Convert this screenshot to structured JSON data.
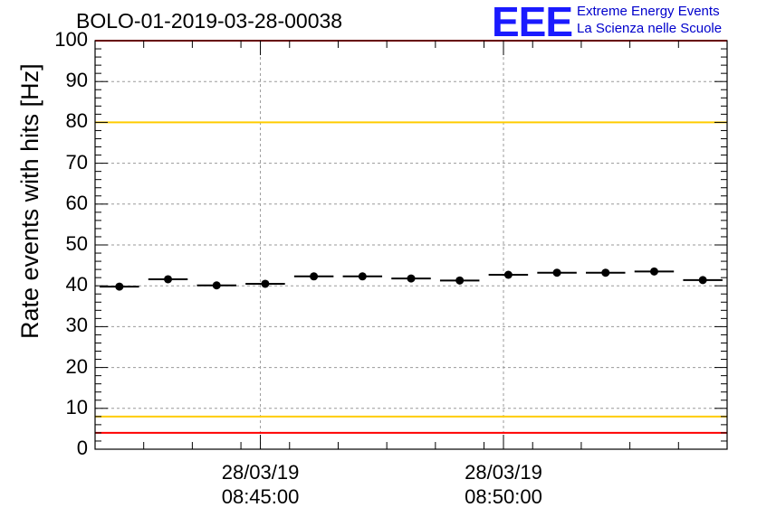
{
  "chart_data": {
    "type": "scatter",
    "title": "BOLO-01-2019-03-28-00038",
    "ylabel": "Rate events with hits [Hz]",
    "xlabel": "",
    "ylim": [
      0,
      100
    ],
    "yticks": [
      "0",
      "10",
      "20",
      "30",
      "40",
      "50",
      "60",
      "70",
      "80",
      "90",
      "100"
    ],
    "xticks": [
      {
        "date": "28/03/19",
        "time": "08:45:00",
        "x_min": 3.4
      },
      {
        "date": "28/03/19",
        "time": "08:50:00",
        "x_min": 8.4
      }
    ],
    "xlim_min": [
      0,
      13
    ],
    "grid": true,
    "series": [
      {
        "name": "rate",
        "bin_width_min": 0.81,
        "x_min": [
          0.5,
          1.5,
          2.5,
          3.5,
          4.5,
          5.5,
          6.5,
          7.5,
          8.5,
          9.5,
          10.5,
          11.5,
          12.5
        ],
        "values": [
          39.8,
          41.6,
          40.1,
          40.5,
          42.3,
          42.3,
          41.8,
          41.3,
          42.7,
          43.2,
          43.2,
          43.5,
          41.4
        ]
      }
    ],
    "reference_lines": [
      {
        "name": "upper-red",
        "value": 100,
        "color": "#ff0000"
      },
      {
        "name": "upper-yellow",
        "value": 80,
        "color": "#ffcc00"
      },
      {
        "name": "lower-yellow",
        "value": 8,
        "color": "#ffcc00"
      },
      {
        "name": "lower-red",
        "value": 4,
        "color": "#ff0000"
      }
    ]
  },
  "logo": {
    "mark": "EEE",
    "line1": "Extreme Energy Events",
    "line2": "La Scienza nelle Scuole",
    "color": "#1a1aff"
  }
}
